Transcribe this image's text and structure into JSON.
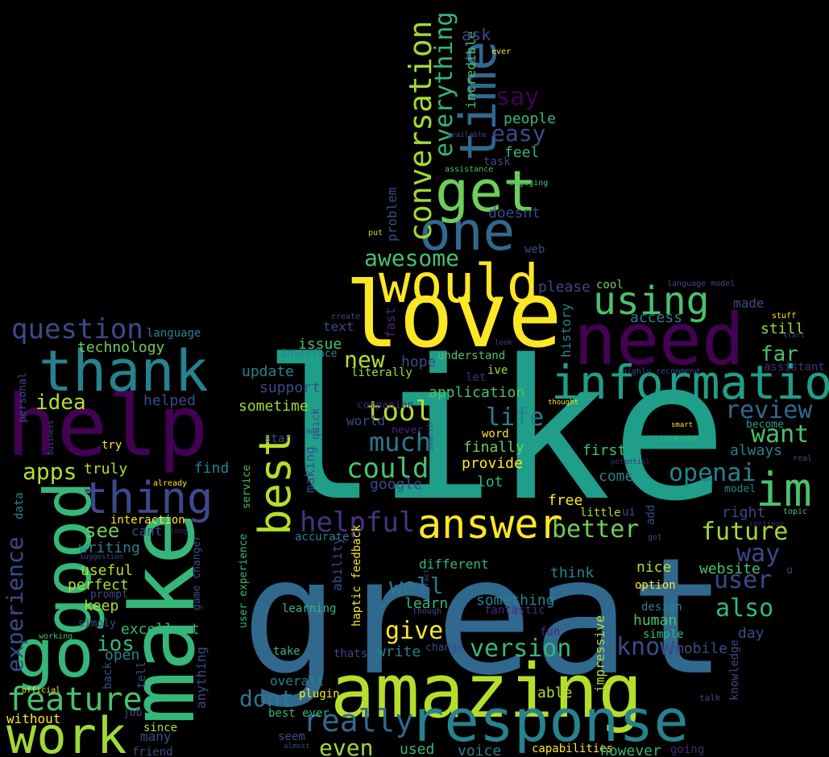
{
  "words": [
    {
      "text": "like",
      "color": "#1f9e89"
    },
    {
      "text": "great",
      "color": "#31688e"
    },
    {
      "text": "amazing",
      "color": "#b5de2b"
    },
    {
      "text": "love",
      "color": "#fde725"
    },
    {
      "text": "need",
      "color": "#440154"
    },
    {
      "text": "response",
      "color": "#26828e"
    },
    {
      "text": "help",
      "color": "#440154"
    },
    {
      "text": "make",
      "color": "#35b779"
    },
    {
      "text": "good",
      "color": "#35b779"
    },
    {
      "text": "go",
      "color": "#35b779"
    },
    {
      "text": "work",
      "color": "#a0da39"
    },
    {
      "text": "information",
      "color": "#1f9e89"
    },
    {
      "text": "would",
      "color": "#fde725"
    },
    {
      "text": "time",
      "color": "#31688e"
    },
    {
      "text": "one",
      "color": "#31688e"
    },
    {
      "text": "get",
      "color": "#6ece58"
    },
    {
      "text": "thank",
      "color": "#26828e"
    },
    {
      "text": "im",
      "color": "#4ac16d"
    },
    {
      "text": "best",
      "color": "#b5de2b"
    },
    {
      "text": "answer",
      "color": "#fde725"
    },
    {
      "text": "using",
      "color": "#4ac16d"
    },
    {
      "text": "thing",
      "color": "#3e4989"
    },
    {
      "text": "conversation",
      "color": "#a0da39"
    },
    {
      "text": "question",
      "color": "#3e4989"
    },
    {
      "text": "really",
      "color": "#31688e"
    },
    {
      "text": "feature",
      "color": "#4ac16d"
    },
    {
      "text": "experience",
      "color": "#3e4989"
    },
    {
      "text": "everything",
      "color": "#35b779"
    },
    {
      "text": "awesome",
      "color": "#4ac16d"
    },
    {
      "text": "helpful",
      "color": "#46337e"
    },
    {
      "text": "could",
      "color": "#4ac16d"
    },
    {
      "text": "tool",
      "color": "#b5de2b"
    },
    {
      "text": "much",
      "color": "#2a788e"
    },
    {
      "text": "life",
      "color": "#26828e"
    },
    {
      "text": "review",
      "color": "#31688e"
    },
    {
      "text": "want",
      "color": "#4ac16d"
    },
    {
      "text": "openai",
      "color": "#26828e"
    },
    {
      "text": "future",
      "color": "#a0da39"
    },
    {
      "text": "better",
      "color": "#6ece58"
    },
    {
      "text": "version",
      "color": "#35b779"
    },
    {
      "text": "know",
      "color": "#3e4989"
    },
    {
      "text": "way",
      "color": "#3e4989"
    },
    {
      "text": "also",
      "color": "#35b779"
    },
    {
      "text": "user",
      "color": "#3e4989"
    },
    {
      "text": "give",
      "color": "#fde725"
    },
    {
      "text": "well",
      "color": "#2a788e"
    },
    {
      "text": "dont",
      "color": "#2a788e"
    },
    {
      "text": "even",
      "color": "#a0da39"
    },
    {
      "text": "new",
      "color": "#b5de2b"
    },
    {
      "text": "say",
      "color": "#440154"
    },
    {
      "text": "easy",
      "color": "#3e4989"
    },
    {
      "text": "apps",
      "color": "#b5de2b"
    },
    {
      "text": "idea",
      "color": "#b5de2b"
    },
    {
      "text": "far",
      "color": "#4ac16d"
    },
    {
      "text": "ios",
      "color": "#35b779"
    },
    {
      "text": "see",
      "color": "#6ece58"
    },
    {
      "text": "technology",
      "color": "#6ece58"
    },
    {
      "text": "incredible",
      "color": "#4ac16d"
    },
    {
      "text": "ask",
      "color": "#3e4989"
    },
    {
      "text": "people",
      "color": "#35b779"
    },
    {
      "text": "feel",
      "color": "#35b779"
    },
    {
      "text": "problem",
      "color": "#3e4989"
    },
    {
      "text": "doesnt",
      "color": "#3e4989"
    },
    {
      "text": "please",
      "color": "#3e4989"
    },
    {
      "text": "cool",
      "color": "#6ece58"
    },
    {
      "text": "made",
      "color": "#3e4989"
    },
    {
      "text": "access",
      "color": "#26828e"
    },
    {
      "text": "still",
      "color": "#a0da39"
    },
    {
      "text": "history",
      "color": "#26828e"
    },
    {
      "text": "fast",
      "color": "#482878"
    },
    {
      "text": "text",
      "color": "#3e4989"
    },
    {
      "text": "issue",
      "color": "#4ac16d"
    },
    {
      "text": "interface",
      "color": "#26828e"
    },
    {
      "text": "update",
      "color": "#26828e"
    },
    {
      "text": "support",
      "color": "#3e4989"
    },
    {
      "text": "sometime",
      "color": "#a0da39"
    },
    {
      "text": "hope",
      "color": "#3e4989"
    },
    {
      "text": "understand",
      "color": "#4ac16d"
    },
    {
      "text": "ive",
      "color": "#a0da39"
    },
    {
      "text": "literally",
      "color": "#a0da39"
    },
    {
      "text": "application",
      "color": "#4ac16d"
    },
    {
      "text": "world",
      "color": "#3e4989"
    },
    {
      "text": "word",
      "color": "#fde725"
    },
    {
      "text": "finally",
      "color": "#6ece58"
    },
    {
      "text": "provide",
      "color": "#fde725"
    },
    {
      "text": "lot",
      "color": "#35b779"
    },
    {
      "text": "google",
      "color": "#3e4989"
    },
    {
      "text": "first",
      "color": "#4ac16d"
    },
    {
      "text": "come",
      "color": "#26828e"
    },
    {
      "text": "always",
      "color": "#26828e"
    },
    {
      "text": "become",
      "color": "#1f9e89"
    },
    {
      "text": "free",
      "color": "#fde725"
    },
    {
      "text": "little",
      "color": "#b5de2b"
    },
    {
      "text": "right",
      "color": "#3e4989"
    },
    {
      "text": "model",
      "color": "#26828e"
    },
    {
      "text": "nice",
      "color": "#b5de2b"
    },
    {
      "text": "website",
      "color": "#4ac16d"
    },
    {
      "text": "option",
      "color": "#fde725"
    },
    {
      "text": "design",
      "color": "#26828e"
    },
    {
      "text": "human",
      "color": "#4ac16d"
    },
    {
      "text": "simple",
      "color": "#35b779"
    },
    {
      "text": "day",
      "color": "#3e4989"
    },
    {
      "text": "mobile",
      "color": "#3e4989"
    },
    {
      "text": "think",
      "color": "#26828e"
    },
    {
      "text": "something",
      "color": "#26828e"
    },
    {
      "text": "fantastic",
      "color": "#482878"
    },
    {
      "text": "learn",
      "color": "#35b779"
    },
    {
      "text": "different",
      "color": "#35b779"
    },
    {
      "text": "accurate",
      "color": "#26828e"
    },
    {
      "text": "ability",
      "color": "#3e4989"
    },
    {
      "text": "haptic feedback",
      "color": "#fde725"
    },
    {
      "text": "learning",
      "color": "#35b779"
    },
    {
      "text": "user experience",
      "color": "#35b779"
    },
    {
      "text": "making",
      "color": "#3e4989"
    },
    {
      "text": "quick",
      "color": "#3e4989"
    },
    {
      "text": "companion",
      "color": "#482878"
    },
    {
      "text": "never",
      "color": "#482878"
    },
    {
      "text": "star",
      "color": "#3e4989"
    },
    {
      "text": "service",
      "color": "#4ac16d"
    },
    {
      "text": "take",
      "color": "#35b779"
    },
    {
      "text": "overall",
      "color": "#26828e"
    },
    {
      "text": "plugin",
      "color": "#fde725"
    },
    {
      "text": "best ever",
      "color": "#35b779"
    },
    {
      "text": "seem",
      "color": "#3e4989"
    },
    {
      "text": "used",
      "color": "#35b779"
    },
    {
      "text": "voice",
      "color": "#26828e"
    },
    {
      "text": "capabilities",
      "color": "#fde725"
    },
    {
      "text": "however",
      "color": "#35b779"
    },
    {
      "text": "going",
      "color": "#482878"
    },
    {
      "text": "able",
      "color": "#b5de2b"
    },
    {
      "text": "impressive",
      "color": "#b5de2b"
    },
    {
      "text": "knowledge",
      "color": "#3e4989"
    },
    {
      "text": "talk",
      "color": "#3e4989"
    },
    {
      "text": "write",
      "color": "#26828e"
    },
    {
      "text": "change",
      "color": "#3e4989"
    },
    {
      "text": "thats",
      "color": "#3e4989"
    },
    {
      "text": "fun",
      "color": "#482878"
    },
    {
      "text": "helped",
      "color": "#3e4989"
    },
    {
      "text": "find",
      "color": "#26828e"
    },
    {
      "text": "try",
      "color": "#fde725"
    },
    {
      "text": "truly",
      "color": "#b5de2b"
    },
    {
      "text": "writing",
      "color": "#26828e"
    },
    {
      "text": "cant",
      "color": "#3e4989"
    },
    {
      "text": "interaction",
      "color": "#fde725"
    },
    {
      "text": "perfect",
      "color": "#b5de2b"
    },
    {
      "text": "useful",
      "color": "#b5de2b"
    },
    {
      "text": "keep",
      "color": "#b5de2b"
    },
    {
      "text": "excellent",
      "color": "#35b779"
    },
    {
      "text": "open",
      "color": "#26828e"
    },
    {
      "text": "simply",
      "color": "#3e4989"
    },
    {
      "text": "prompt",
      "color": "#3e4989"
    },
    {
      "text": "suggestion",
      "color": "#3e4989"
    },
    {
      "text": "thought",
      "color": "#fde725"
    },
    {
      "text": "language",
      "color": "#26828e"
    },
    {
      "text": "personal",
      "color": "#3e4989"
    },
    {
      "text": "business",
      "color": "#3e4989"
    },
    {
      "text": "data",
      "color": "#26828e"
    },
    {
      "text": "game changer",
      "color": "#3e4989"
    },
    {
      "text": "anything",
      "color": "#3e4989"
    },
    {
      "text": "without",
      "color": "#fde725"
    },
    {
      "text": "many",
      "color": "#3e4989"
    },
    {
      "text": "since",
      "color": "#b5de2b"
    },
    {
      "text": "friend",
      "color": "#3e4989"
    },
    {
      "text": "job",
      "color": "#3e4989"
    },
    {
      "text": "official",
      "color": "#fde725"
    },
    {
      "text": "working",
      "color": "#4ac16d"
    },
    {
      "text": "back",
      "color": "#3e4989"
    },
    {
      "text": "tell",
      "color": "#3e4989"
    },
    {
      "text": "already",
      "color": "#fde725"
    },
    {
      "text": "long",
      "color": "#482878"
    },
    {
      "text": "ever",
      "color": "#fde725"
    },
    {
      "text": "available",
      "color": "#3e4989"
    },
    {
      "text": "assistance",
      "color": "#4ac16d"
    },
    {
      "text": "task",
      "color": "#3e4989"
    },
    {
      "text": "engaging",
      "color": "#4ac16d"
    },
    {
      "text": "put",
      "color": "#b5de2b"
    },
    {
      "text": "web",
      "color": "#3e4989"
    },
    {
      "text": "language model",
      "color": "#3e4989"
    },
    {
      "text": "stuff",
      "color": "#fde725"
    },
    {
      "text": "start",
      "color": "#3e4989"
    },
    {
      "text": "assistant",
      "color": "#482878"
    },
    {
      "text": "create",
      "color": "#3e4989"
    },
    {
      "text": "look",
      "color": "#3e4989"
    },
    {
      "text": "highly recommend",
      "color": "#3e4989"
    },
    {
      "text": "let",
      "color": "#482878"
    },
    {
      "text": "smart",
      "color": "#fde725"
    },
    {
      "text": "internet",
      "color": "#35b779"
    },
    {
      "text": "potential",
      "color": "#482878"
    },
    {
      "text": "real",
      "color": "#3e4989"
    },
    {
      "text": "search",
      "color": "#3e4989"
    },
    {
      "text": "may",
      "color": "#3e4989"
    },
    {
      "text": "ui",
      "color": "#3e4989"
    },
    {
      "text": "add",
      "color": "#3e4989"
    },
    {
      "text": "topic",
      "color": "#4ac16d"
    },
    {
      "text": "continue",
      "color": "#482878"
    },
    {
      "text": "got",
      "color": "#3e4989"
    },
    {
      "text": "u",
      "color": "#3e4989"
    },
    {
      "text": "fact",
      "color": "#3e4989"
    },
    {
      "text": "though",
      "color": "#3e4989"
    },
    {
      "text": "almost",
      "color": "#3e4989"
    }
  ]
}
